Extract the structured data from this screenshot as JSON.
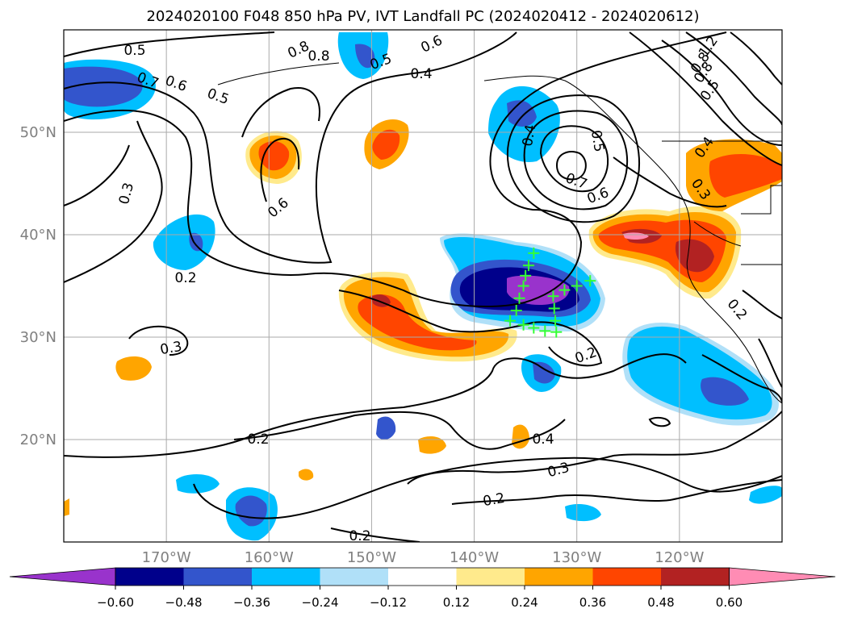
{
  "title": "2024020100 F048 850 hPa PV, IVT Landfall PC (2024020412 - 2024020612)",
  "axes": {
    "lon_ticks": [
      "170°W",
      "160°W",
      "150°W",
      "140°W",
      "130°W",
      "120°W"
    ],
    "lat_ticks": [
      "50°N",
      "40°N",
      "30°N",
      "20°N"
    ],
    "tick_color": "#808080"
  },
  "colorbar": {
    "tick_labels": [
      "−0.60",
      "−0.48",
      "−0.36",
      "−0.24",
      "−0.12",
      "0.12",
      "0.24",
      "0.36",
      "0.48",
      "0.60"
    ],
    "colors": [
      "#9933CC",
      "#00008B",
      "#3355CC",
      "#00BFFF",
      "#B0E0F8",
      "#FFFFFF",
      "#FFEA8C",
      "#FFA500",
      "#FF4500",
      "#B22222",
      "#FF8CB4"
    ]
  },
  "contour_labels": [
    {
      "text": "0.5"
    },
    {
      "text": "0.7"
    },
    {
      "text": "0.6"
    },
    {
      "text": "0.5"
    },
    {
      "text": "0.8"
    },
    {
      "text": "0.8"
    },
    {
      "text": "0.5"
    },
    {
      "text": "0.6"
    },
    {
      "text": "0.4"
    },
    {
      "text": "0.4"
    },
    {
      "text": "0.5"
    },
    {
      "text": "0.7"
    },
    {
      "text": "0.6"
    },
    {
      "text": "0.3"
    },
    {
      "text": "0.6"
    },
    {
      "text": "0.2"
    },
    {
      "text": "0.3"
    },
    {
      "text": "0.2"
    },
    {
      "text": "0.2"
    },
    {
      "text": "0.4"
    },
    {
      "text": "0.3"
    },
    {
      "text": "0.2"
    },
    {
      "text": "0.2"
    },
    {
      "text": "1.2"
    },
    {
      "text": "0.8"
    },
    {
      "text": "0.8"
    },
    {
      "text": "0.5"
    },
    {
      "text": "0.4"
    },
    {
      "text": "0.3"
    },
    {
      "text": "0.2"
    }
  ],
  "landfall_points": [
    {
      "lon": -134.2,
      "lat": 38.2
    },
    {
      "lon": -134.7,
      "lat": 37.0
    },
    {
      "lon": -135.0,
      "lat": 36.0
    },
    {
      "lon": -135.2,
      "lat": 35.0
    },
    {
      "lon": -135.6,
      "lat": 33.8
    },
    {
      "lon": -135.9,
      "lat": 32.6
    },
    {
      "lon": -136.5,
      "lat": 31.6
    },
    {
      "lon": -135.2,
      "lat": 31.2
    },
    {
      "lon": -134.2,
      "lat": 30.9
    },
    {
      "lon": -133.1,
      "lat": 30.6
    },
    {
      "lon": -132.0,
      "lat": 30.5
    },
    {
      "lon": -132.1,
      "lat": 31.6
    },
    {
      "lon": -132.2,
      "lat": 32.8
    },
    {
      "lon": -132.3,
      "lat": 34.0
    },
    {
      "lon": -131.2,
      "lat": 34.6
    },
    {
      "lon": -130.0,
      "lat": 35.0
    },
    {
      "lon": -128.7,
      "lat": 35.5
    }
  ]
}
